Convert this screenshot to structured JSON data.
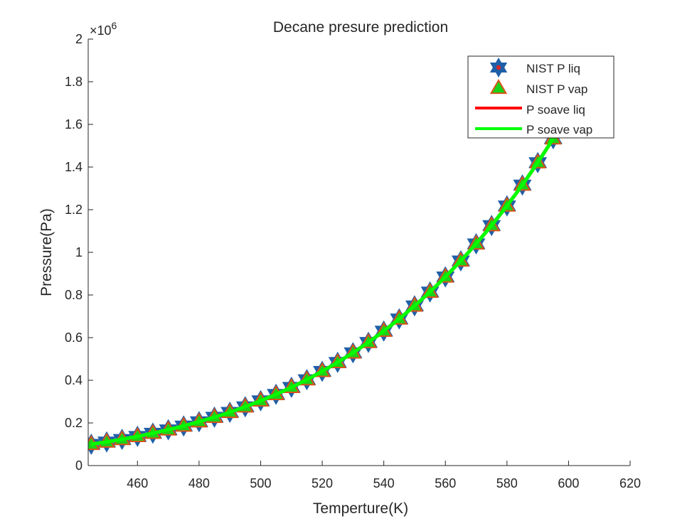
{
  "chart_data": {
    "type": "line",
    "title": "Decane presure prediction",
    "xlabel": "Temperture(K)",
    "ylabel": "Pressure(Pa)",
    "y_multiplier_base": "×10",
    "y_multiplier_exp": "6",
    "xlim": [
      444,
      620
    ],
    "ylim": [
      0,
      2
    ],
    "xticks": [
      460,
      480,
      500,
      520,
      540,
      560,
      580,
      600,
      620
    ],
    "yticks": [
      0,
      0.2,
      0.4,
      0.6,
      0.8,
      1,
      1.2,
      1.4,
      1.6,
      1.8,
      2
    ],
    "grid": false,
    "legend_position": "top-right",
    "x": [
      445,
      450,
      455,
      460,
      465,
      470,
      475,
      480,
      485,
      490,
      495,
      500,
      505,
      510,
      515,
      520,
      525,
      530,
      535,
      540,
      545,
      550,
      555,
      560,
      565,
      570,
      575,
      580,
      585,
      590,
      595
    ],
    "series": [
      {
        "name": "NIST P liq",
        "style": "marker-hexagram",
        "color": "#1f5fa8",
        "face_color": "#d62728",
        "values": [
          0.1,
          0.111,
          0.123,
          0.137,
          0.152,
          0.168,
          0.186,
          0.206,
          0.227,
          0.25,
          0.276,
          0.304,
          0.334,
          0.367,
          0.403,
          0.442,
          0.484,
          0.529,
          0.578,
          0.631,
          0.688,
          0.749,
          0.814,
          0.885,
          0.96,
          1.04,
          1.126,
          1.218,
          1.316,
          1.421,
          1.533
        ]
      },
      {
        "name": "NIST P vap",
        "style": "marker-triangle",
        "color": "#d95319",
        "face_color": "#19d219",
        "values": [
          0.1,
          0.111,
          0.123,
          0.137,
          0.152,
          0.168,
          0.186,
          0.206,
          0.227,
          0.25,
          0.276,
          0.304,
          0.334,
          0.367,
          0.403,
          0.442,
          0.484,
          0.529,
          0.578,
          0.631,
          0.688,
          0.749,
          0.814,
          0.885,
          0.96,
          1.04,
          1.126,
          1.218,
          1.316,
          1.421,
          1.533
        ]
      },
      {
        "name": "P soave liq",
        "style": "line",
        "color": "#ff0000",
        "values": [
          0.1,
          0.111,
          0.123,
          0.137,
          0.152,
          0.168,
          0.186,
          0.206,
          0.227,
          0.25,
          0.276,
          0.304,
          0.334,
          0.367,
          0.403,
          0.442,
          0.484,
          0.529,
          0.578,
          0.631,
          0.688,
          0.749,
          0.814,
          0.885,
          0.96,
          1.04,
          1.126,
          1.218,
          1.316,
          1.421,
          1.533
        ]
      },
      {
        "name": "P soave vap",
        "style": "line",
        "color": "#00ff00",
        "values": [
          0.1,
          0.111,
          0.123,
          0.137,
          0.152,
          0.168,
          0.186,
          0.206,
          0.227,
          0.25,
          0.276,
          0.304,
          0.334,
          0.367,
          0.403,
          0.442,
          0.484,
          0.529,
          0.578,
          0.631,
          0.688,
          0.749,
          0.814,
          0.885,
          0.96,
          1.04,
          1.126,
          1.218,
          1.316,
          1.421,
          1.533
        ]
      }
    ]
  }
}
